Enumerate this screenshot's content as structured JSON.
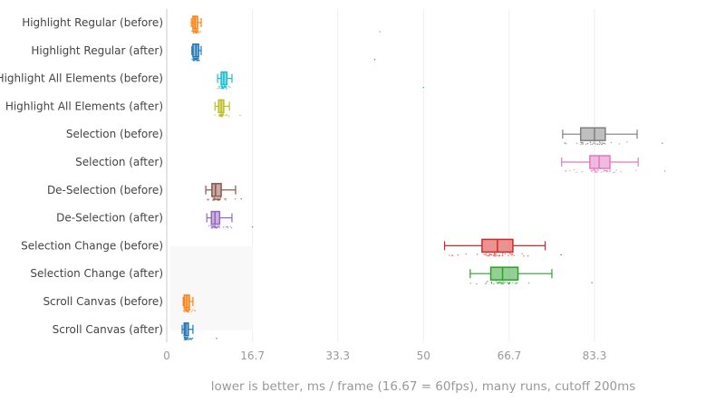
{
  "chart_data": {
    "type": "box",
    "orientation": "horizontal",
    "xlabel": "lower is better, ms / frame (16.67 = 60fps), many runs, cutoff 200ms",
    "xlim": [
      0,
      100
    ],
    "xticks": [
      0,
      16.7,
      33.3,
      50,
      66.7,
      83.3
    ],
    "xtick_labels": [
      "0",
      "16.7",
      "33.3",
      "50",
      "66.7",
      "83.3"
    ],
    "grid": true,
    "series": [
      {
        "name": "Highlight Regular (before)",
        "color": "#ff7f0e",
        "whisker_low": 4.8,
        "q1": 5.1,
        "median": 5.5,
        "q3": 6.0,
        "whisker_high": 6.7,
        "max_point": 41.5
      },
      {
        "name": "Highlight Regular (after)",
        "color": "#1f77b4",
        "whisker_low": 4.9,
        "q1": 5.1,
        "median": 5.7,
        "q3": 6.2,
        "whisker_high": 6.7,
        "max_point": 40.5
      },
      {
        "name": "Highlight All Elements (before)",
        "color": "#17becf",
        "whisker_low": 9.9,
        "q1": 10.6,
        "median": 11.1,
        "q3": 11.7,
        "whisker_high": 12.7,
        "max_point": 50.0
      },
      {
        "name": "Highlight All Elements (after)",
        "color": "#bcbd22",
        "whisker_low": 9.4,
        "q1": 10.1,
        "median": 10.6,
        "q3": 11.1,
        "whisker_high": 12.2,
        "max_point": 14.3
      },
      {
        "name": "Selection (before)",
        "color": "#7f7f7f",
        "whisker_low": 77.1,
        "q1": 80.6,
        "median": 83.3,
        "q3": 85.4,
        "whisker_high": 91.6,
        "max_point": 96.5
      },
      {
        "name": "Selection (after)",
        "color": "#e377c2",
        "whisker_low": 76.9,
        "q1": 82.4,
        "median": 84.2,
        "q3": 86.3,
        "whisker_high": 91.8,
        "max_point": 97.0
      },
      {
        "name": "De-Selection (before)",
        "color": "#8c564b",
        "whisker_low": 7.6,
        "q1": 8.8,
        "median": 9.5,
        "q3": 10.6,
        "whisker_high": 13.4,
        "max_point": 14.5
      },
      {
        "name": "De-Selection (after)",
        "color": "#9467bd",
        "whisker_low": 7.8,
        "q1": 8.7,
        "median": 9.4,
        "q3": 10.3,
        "whisker_high": 12.7,
        "max_point": 16.7
      },
      {
        "name": "Selection Change (before)",
        "color": "#d62728",
        "whisker_low": 54.1,
        "q1": 61.4,
        "median": 64.4,
        "q3": 67.4,
        "whisker_high": 73.7,
        "max_point": 76.8
      },
      {
        "name": "Selection Change (after)",
        "color": "#2ca02c",
        "whisker_low": 59.1,
        "q1": 63.1,
        "median": 65.4,
        "q3": 68.4,
        "whisker_high": 75.0,
        "max_point": 82.8
      },
      {
        "name": "Scroll Canvas (before)",
        "color": "#ff7f0e",
        "whisker_low": 3.2,
        "q1": 3.4,
        "median": 3.9,
        "q3": 4.4,
        "whisker_high": 5.1,
        "max_point": 5.5
      },
      {
        "name": "Scroll Canvas (after)",
        "color": "#1f77b4",
        "whisker_low": 3.0,
        "q1": 3.4,
        "median": 3.7,
        "q3": 4.2,
        "whisker_high": 5.1,
        "max_point": 9.7
      }
    ]
  }
}
